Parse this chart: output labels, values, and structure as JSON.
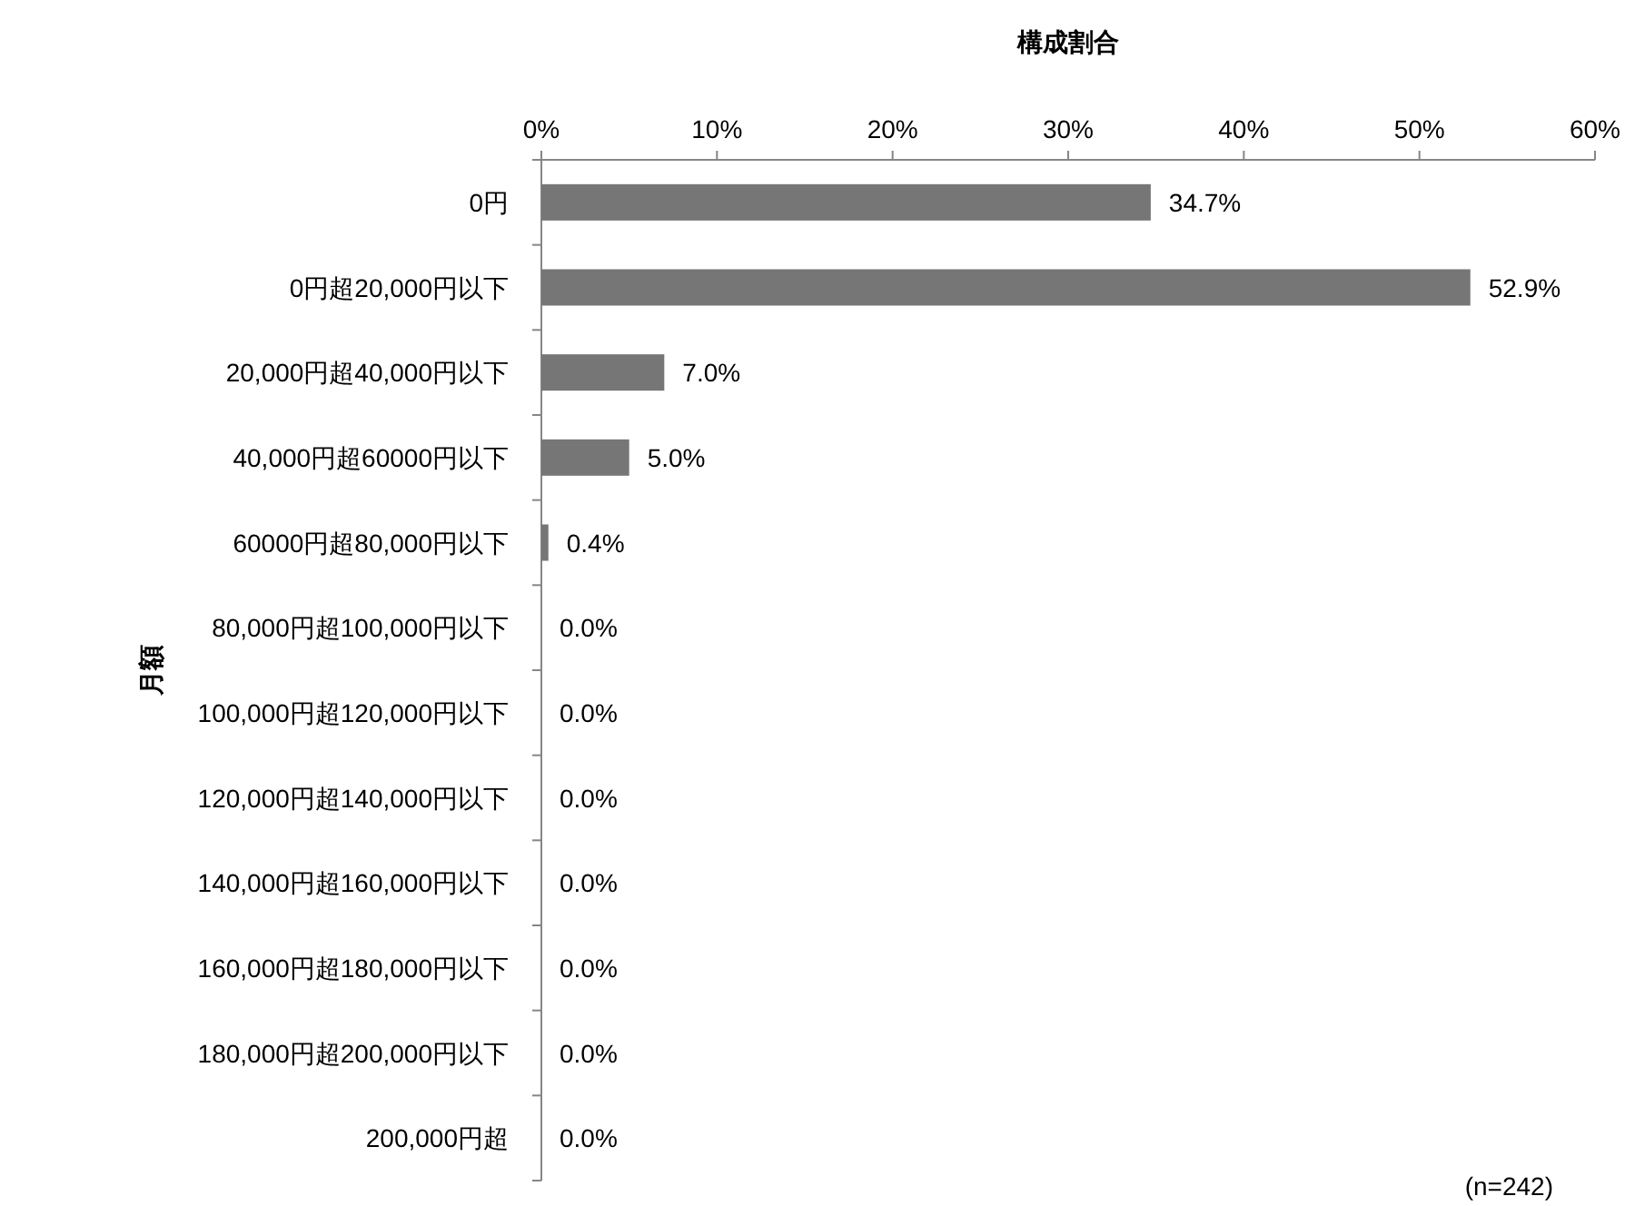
{
  "chart_data": {
    "type": "bar",
    "orientation": "horizontal",
    "xlabel": "構成割合",
    "ylabel": "月額",
    "categories": [
      "0円",
      "0円超20,000円以下",
      "20,000円超40,000円以下",
      "40,000円超60000円以下",
      "60000円超80,000円以下",
      "80,000円超100,000円以下",
      "100,000円超120,000円以下",
      "120,000円超140,000円以下",
      "140,000円超160,000円以下",
      "160,000円超180,000円以下",
      "180,000円超200,000円以下",
      "200,000円超"
    ],
    "values": [
      34.7,
      52.9,
      7.0,
      5.0,
      0.4,
      0.0,
      0.0,
      0.0,
      0.0,
      0.0,
      0.0,
      0.0
    ],
    "value_labels": [
      "34.7%",
      "52.9%",
      "7.0%",
      "5.0%",
      "0.4%",
      "0.0%",
      "0.0%",
      "0.0%",
      "0.0%",
      "0.0%",
      "0.0%",
      "0.0%"
    ],
    "color": "#767676",
    "xlim": [
      0,
      60
    ],
    "xticks": [
      {
        "value": 0,
        "label": "0%"
      },
      {
        "value": 10,
        "label": "10%"
      },
      {
        "value": 20,
        "label": "20%"
      },
      {
        "value": 30,
        "label": "30%"
      },
      {
        "value": 40,
        "label": "40%"
      },
      {
        "value": 50,
        "label": "50%"
      },
      {
        "value": 60,
        "label": "60%"
      }
    ],
    "grid": false,
    "annotations": [
      "(n=242)"
    ]
  }
}
